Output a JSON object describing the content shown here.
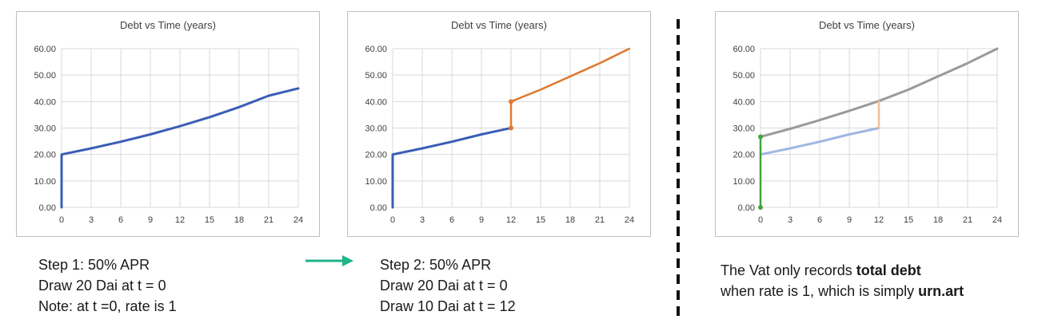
{
  "colors": {
    "blue": "#3a5eb5",
    "orange": "#e0782f",
    "gray": "#9a9a9a",
    "light_blue": "#9fb6e3",
    "peach": "#f4bd96",
    "green": "#43a33a",
    "arrow_teal": "#1fb38a",
    "grid": "#d9d9d9"
  },
  "chart_data": [
    {
      "type": "line",
      "title": "Debt vs Time (years)",
      "xlim": [
        0,
        24
      ],
      "ylim": [
        0,
        60
      ],
      "x_ticks": [
        "0",
        "3",
        "6",
        "9",
        "12",
        "15",
        "18",
        "21",
        "24"
      ],
      "y_ticks": [
        "0.00",
        "10.00",
        "20.00",
        "30.00",
        "40.00",
        "50.00",
        "60.00"
      ],
      "grid": true,
      "series": [
        {
          "color": "blue",
          "width": 3,
          "points": [
            [
              0,
              0
            ],
            [
              0,
              20
            ],
            [
              3,
              22.3
            ],
            [
              6,
              24.8
            ],
            [
              9,
              27.6
            ],
            [
              12,
              30.7
            ],
            [
              15,
              34.1
            ],
            [
              18,
              37.9
            ],
            [
              21,
              42.2
            ],
            [
              24,
              45
            ]
          ]
        }
      ]
    },
    {
      "type": "line",
      "title": "Debt vs Time (years)",
      "xlim": [
        0,
        24
      ],
      "ylim": [
        0,
        60
      ],
      "x_ticks": [
        "0",
        "3",
        "6",
        "9",
        "12",
        "15",
        "18",
        "21",
        "24"
      ],
      "y_ticks": [
        "0.00",
        "10.00",
        "20.00",
        "30.00",
        "40.00",
        "50.00",
        "60.00"
      ],
      "grid": true,
      "series": [
        {
          "color": "blue",
          "width": 3,
          "points": [
            [
              0,
              0
            ],
            [
              0,
              20
            ],
            [
              3,
              22.3
            ],
            [
              6,
              24.8
            ],
            [
              9,
              27.6
            ],
            [
              12,
              30
            ]
          ]
        },
        {
          "color": "orange",
          "width": 2.5,
          "markers": [
            [
              12,
              30
            ],
            [
              12,
              40
            ]
          ],
          "points": [
            [
              12,
              30
            ],
            [
              12,
              40
            ],
            [
              15,
              44.5
            ],
            [
              18,
              49.5
            ],
            [
              21,
              54.5
            ],
            [
              24,
              60
            ]
          ]
        }
      ]
    },
    {
      "type": "line",
      "title": "Debt vs Time (years)",
      "xlim": [
        0,
        24
      ],
      "ylim": [
        0,
        60
      ],
      "x_ticks": [
        "0",
        "3",
        "6",
        "9",
        "12",
        "15",
        "18",
        "21",
        "24"
      ],
      "y_ticks": [
        "0.00",
        "10.00",
        "20.00",
        "30.00",
        "40.00",
        "50.00",
        "60.00"
      ],
      "grid": true,
      "series": [
        {
          "color": "gray",
          "width": 3,
          "points": [
            [
              0,
              26.7
            ],
            [
              3,
              29.7
            ],
            [
              6,
              33
            ],
            [
              9,
              36.5
            ],
            [
              12,
              40.2
            ],
            [
              15,
              44.5
            ],
            [
              18,
              49.5
            ],
            [
              21,
              54.5
            ],
            [
              24,
              60
            ]
          ]
        },
        {
          "color": "light_blue",
          "width": 3,
          "points": [
            [
              0,
              20
            ],
            [
              3,
              22.3
            ],
            [
              6,
              24.8
            ],
            [
              9,
              27.6
            ],
            [
              12,
              30
            ]
          ]
        },
        {
          "color": "peach",
          "width": 2.5,
          "points": [
            [
              12,
              30
            ],
            [
              12,
              40
            ]
          ]
        },
        {
          "color": "green",
          "width": 2.5,
          "markers": [
            [
              0,
              0
            ],
            [
              0,
              26.7
            ]
          ],
          "points": [
            [
              0,
              0
            ],
            [
              0,
              26.7
            ]
          ]
        }
      ]
    }
  ],
  "captions": {
    "step1": [
      "Step 1: 50% APR",
      "Draw 20 Dai at t = 0",
      "Note: at t =0, rate is 1"
    ],
    "step2": [
      "Step 2: 50% APR",
      "Draw 20 Dai at t = 0",
      "Draw 10 Dai at t = 12"
    ],
    "vat": {
      "line1_prefix": "The Vat only records ",
      "line1_bold": "total debt",
      "line2_prefix": "when rate is 1, which is simply ",
      "line2_bold": "urn.art"
    }
  }
}
